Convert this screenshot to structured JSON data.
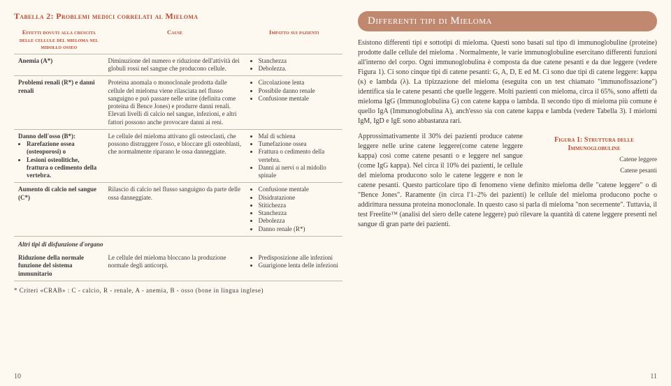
{
  "table": {
    "title": "Tabella 2: Problemi medici correlati al Mieloma",
    "headers": {
      "effects": "Effetti dovuti alla crescita delle cellule del mieloma nel midollo osseo",
      "cause": "Cause",
      "impact": "Impatto sui pazienti"
    },
    "rows": [
      {
        "effect": "Anemia (A*)",
        "cause": "Diminuzione del numero e riduzione dell'attività dei globuli rossi nel sangue che producono cellule.",
        "impacts": [
          "Stanchezza",
          "Debolezza."
        ]
      },
      {
        "effect": "Problemi renali (R*) e danni renali",
        "cause": "Proteina anomala o monoclonale prodotta dalle cellule del mieloma viene rilasciata nel flusso sanguigno e può passare nelle urine (definita come proteina di Bence Jones) e produrre danni renali. Elevati livelli di calcio nel sangue, infezioni, e altri fattori possono anche provocare danni ai reni.",
        "impacts": [
          "Circolazione lenta",
          "Possibile danno renale",
          "Confusione mentale"
        ]
      },
      {
        "effect_html": "Danno dell'osso (B*):<ul class='b'><li>Rarefazione ossea (osteoporosi) o</li><li>Lesioni osteolitiche, frattura o cedimento della vertebra.</li></ul>",
        "cause": "Le cellule del mieloma attivano gli osteoclasti, che possono distruggere l'osso, e bloccare gli osteoblasti, che normalmente riparano le ossa danneggiate.",
        "impacts": [
          "Mal di schiena",
          "Tumefazione ossea",
          "Frattura o cedimento della vertebra.",
          "Danni ai nervi o al midollo spinale"
        ]
      },
      {
        "effect": "Aumento di calcio nel sangue (C*)",
        "cause": "Rilascio di calcio nel flusso sanguigno da parte delle ossa danneggiate.",
        "impacts": [
          "Confusione mentale",
          "Disidratazione",
          "Stitichezza",
          "Stanchezza",
          "Debolezza",
          "Danno renale (R*)"
        ]
      }
    ],
    "section_divider": "Altri tipi di disfunzione d'organo",
    "rows2": [
      {
        "effect": "Riduzione della normale funzione del sistema immunitario",
        "cause": "Le cellule del mieloma bloccano la produzione normale degli anticorpi.",
        "impacts": [
          "Predisposizione alle infezioni",
          "Guarigione lenta delle infezioni"
        ]
      }
    ],
    "footnote": "* Criteri «CRAB» :  C - calcio,  R - renale,  A - anemia,  B - osso (bone in lingua inglese)"
  },
  "right": {
    "heading": "Differenti tipi di Mieloma",
    "para1": "Esistono differenti tipi e sottotipi di mieloma. Questi sono basati sul tipo di immunoglobuline (proteine) prodotte dalle cellule del mieloma . Normalmente, le varie immunoglobuline esercitano differenti funzioni all'interno del corpo. Ogni immunoglobulina è composta da due catene pesanti e da due leggere (vedere Figura 1). Ci sono cinque tipi di catene pesanti: G, A, D, E ed M. Ci sono due tipi di catene leggere: kappa (κ) e lambda (λ). La tipizzazione del mieloma (eseguita con un test chiamato \"immunofissazione\") identifica sia le catene pesanti che quelle leggere. Molti pazienti con mieloma, circa il 65%, sono affetti da mieloma IgG (Immunoglobulina G) con catene kappa o lambda. Il secondo tipo di mieloma più comune è quello IgA (Immunoglobulina A), anch'esso sia con catene kappa e lambda (vedere Tabella 3). I mielomi IgM, IgD e IgE sono abbastanza rari.",
    "para2": "Approssimativamente il 30% dei pazienti produce catene leggere nelle urine catene leggere(come catene leggere kappa) così come catene pesanti o e leggere nel sangue (come IgG kappa). Nel circa il 10% dei pazienti, le cellule del mieloma producono solo le catene leggere e non le catene pesanti. Questo particolare tipo di fenomeno viene definito mieloma delle \"catene leggere\" o di \"Bence Jones\". Raramente (in circa l'1–2% dei pazienti) le cellule del mieloma producono poche o addirittura nessuna proteina monoclonale. In questo caso si parla di mieloma \"non secernente\". Tuttavia, il test Freelite™ (analisi del siero delle catene leggere) può rilevare la quantità di catene leggere presenti nel sangue di gran parte dei pazienti.",
    "figure": {
      "title": "Figura 1: Struttura delle Immunoglobuline",
      "caption1": "Catene leggere",
      "caption2": "Catene pesanti"
    }
  },
  "page_left": "10",
  "page_right": "11"
}
